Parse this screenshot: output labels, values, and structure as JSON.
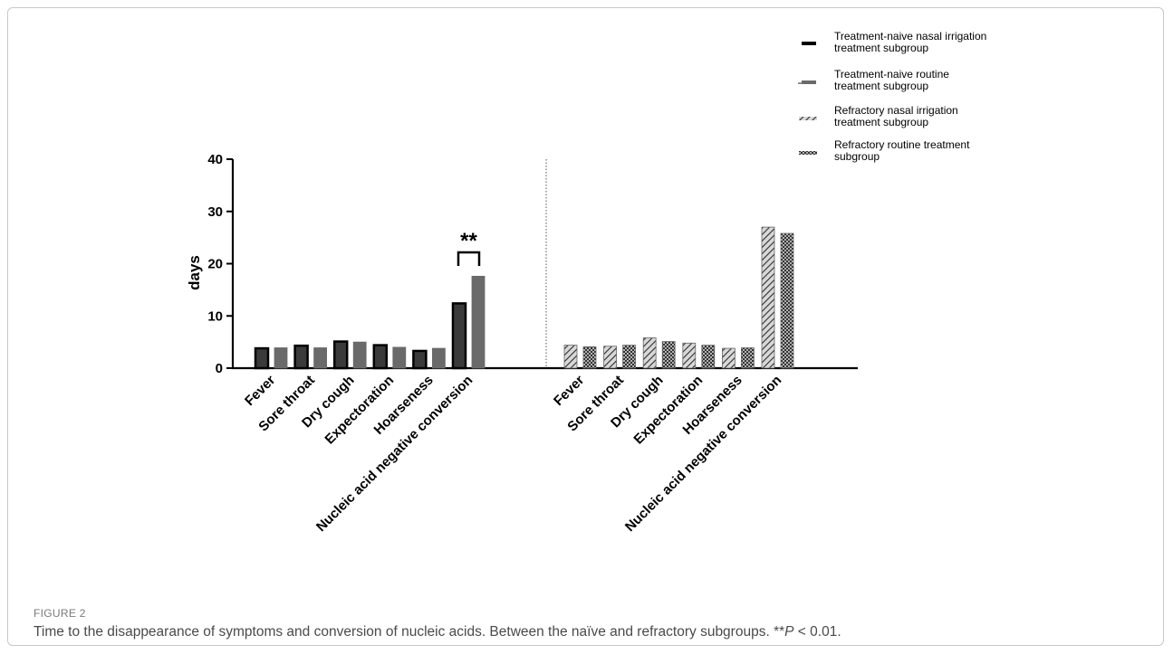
{
  "figure_label": "FIGURE 2",
  "caption_parts": [
    "Time to the disappearance of symptoms and conversion of nucleic acids. Between the naïve and refractory subgroups. **",
    "P",
    " < 0.01."
  ],
  "chart_data": {
    "type": "bar",
    "ylabel": "days",
    "ylim": [
      0,
      40
    ],
    "yticks": [
      0,
      10,
      20,
      30,
      40
    ],
    "grid": false,
    "legend_position": "top-right",
    "groups": [
      {
        "categories": [
          "Fever",
          "Sore throat",
          "Dry cough",
          "Expectoration",
          "Hoarseness",
          "Nucleic acid negative conversion"
        ],
        "series": [
          {
            "name": "Treatment-naive nasal irrigation treatment subgroup",
            "values": [
              3.8,
              4.3,
              5.1,
              4.4,
              3.3,
              12.4
            ]
          },
          {
            "name": "Treatment-naive routine treatment subgroup",
            "values": [
              3.9,
              3.9,
              5.0,
              4.0,
              3.8,
              17.6
            ]
          }
        ]
      },
      {
        "categories": [
          "Fever",
          "Sore throat",
          "Dry cough",
          "Expectoration",
          "Hoarseness",
          "Nucleic acid negative conversion"
        ],
        "series": [
          {
            "name": "Refractory nasal irrigation treatment subgroup",
            "values": [
              4.4,
              4.2,
              5.8,
              4.8,
              3.8,
              27.0
            ]
          },
          {
            "name": "Refractory routine treatment subgroup",
            "values": [
              4.1,
              4.4,
              5.1,
              4.4,
              3.9,
              25.8
            ]
          }
        ]
      }
    ],
    "legend": [
      {
        "lines": [
          "Treatment-naive nasal irrigation",
          "treatment subgroup"
        ],
        "style": "solid-dark"
      },
      {
        "lines": [
          "Treatment-naive routine",
          "treatment subgroup"
        ],
        "style": "solid-gray"
      },
      {
        "lines": [
          "Refractory nasal irrigation",
          "treatment subgroup"
        ],
        "style": "hatch"
      },
      {
        "lines": [
          "Refractory routine treatment",
          "subgroup"
        ],
        "style": "crosshatch"
      }
    ],
    "annotations": [
      {
        "text": "**",
        "group": 0,
        "category": 5
      }
    ]
  }
}
